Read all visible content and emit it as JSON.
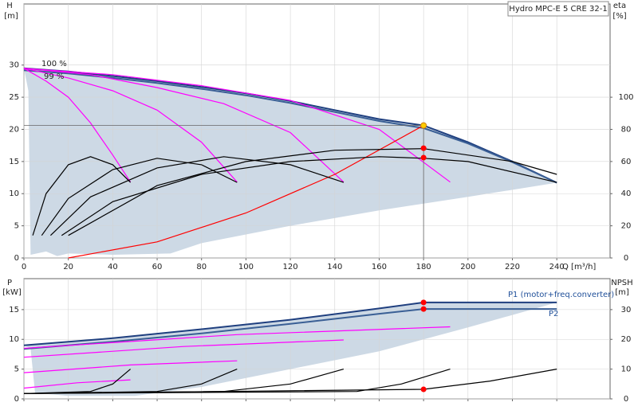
{
  "chart_data": [
    {
      "type": "line",
      "title": "Hydro MPC-E 5 CRE 32-1",
      "x_label": "Q [m³/h]",
      "y_label": "H",
      "y_unit": "[m]",
      "y2_label": "eta",
      "y2_unit": "[%]",
      "xlim": [
        0,
        264
      ],
      "xticks": [
        0,
        20,
        40,
        60,
        80,
        100,
        120,
        140,
        160,
        180,
        200,
        220,
        240
      ],
      "ylim": [
        0,
        39.5
      ],
      "yticks": [
        0,
        5,
        10,
        15,
        20,
        25,
        30
      ],
      "y2lim": [
        0,
        158
      ],
      "y2ticks": [
        0,
        20,
        40,
        60,
        80,
        100
      ],
      "grid": true,
      "area": {
        "color": "#cdd9e5",
        "x": [
          0,
          20,
          40,
          60,
          80,
          100,
          120,
          140,
          160,
          180,
          200,
          220,
          240,
          200,
          160,
          120,
          80,
          66,
          40,
          20,
          15,
          10,
          3,
          2
        ],
        "values": [
          29.5,
          29,
          28.3,
          27.5,
          26.6,
          25.6,
          24.4,
          23,
          21.6,
          20.6,
          18,
          15,
          11.7,
          9.5,
          7.4,
          5,
          2.3,
          0.7,
          0.5,
          0.7,
          0.3,
          1,
          0.5,
          26
        ]
      },
      "series": [
        {
          "name": "100 %",
          "color": "#1f3f7f",
          "x": [
            0,
            20,
            40,
            60,
            80,
            100,
            120,
            140,
            160,
            180,
            200,
            220,
            240
          ],
          "values": [
            29.5,
            29,
            28.3,
            27.5,
            26.6,
            25.6,
            24.4,
            23,
            21.6,
            20.6,
            18,
            15,
            11.7
          ]
        },
        {
          "name": "99 %",
          "color": "#3a5f95",
          "x": [
            0,
            20,
            40,
            60,
            80,
            100,
            120,
            140,
            160,
            180,
            200,
            220,
            240
          ],
          "values": [
            29.2,
            28.7,
            28,
            27.2,
            26.3,
            25.3,
            24.1,
            22.7,
            21.3,
            20.2,
            17.8,
            14.9,
            11.7
          ]
        },
        {
          "color": "#ff00ff",
          "x": [
            0,
            10,
            20,
            30,
            40,
            48
          ],
          "values": [
            29.5,
            27.5,
            25,
            21,
            16,
            11.8
          ]
        },
        {
          "color": "#ff00ff",
          "x": [
            0,
            20,
            40,
            60,
            80,
            96
          ],
          "values": [
            29.5,
            28,
            26,
            23,
            18,
            11.8
          ]
        },
        {
          "color": "#ff00ff",
          "x": [
            0,
            30,
            60,
            90,
            120,
            144
          ],
          "values": [
            29.5,
            28.5,
            26.5,
            24,
            19.5,
            11.8
          ]
        },
        {
          "color": "#ff00ff",
          "x": [
            0,
            40,
            80,
            120,
            160,
            192
          ],
          "values": [
            29.5,
            28.5,
            26.8,
            24.5,
            20,
            11.8
          ]
        },
        {
          "color": "#ff0000",
          "x": [
            20,
            60,
            100,
            140,
            180
          ],
          "values": [
            0,
            2.5,
            7,
            13,
            20.6
          ]
        },
        {
          "color": "#000000",
          "axis": "y2",
          "x": [
            4,
            10,
            20,
            30,
            40,
            48
          ],
          "values": [
            14,
            40,
            58,
            63,
            58,
            47
          ]
        },
        {
          "color": "#000000",
          "axis": "y2",
          "x": [
            8,
            20,
            40,
            60,
            80,
            96
          ],
          "values": [
            14,
            37,
            55,
            62,
            58,
            47
          ]
        },
        {
          "color": "#000000",
          "axis": "y2",
          "x": [
            12,
            30,
            60,
            90,
            120,
            144
          ],
          "values": [
            14,
            38,
            56,
            63,
            58,
            47
          ]
        },
        {
          "color": "#000000",
          "axis": "y2",
          "x": [
            17,
            40,
            80,
            120,
            160,
            180,
            200,
            240
          ],
          "values": [
            14,
            35,
            52,
            60,
            63,
            62,
            60,
            47
          ]
        },
        {
          "color": "#000000",
          "axis": "y2",
          "x": [
            20,
            60,
            100,
            140,
            180,
            220,
            240
          ],
          "values": [
            14,
            45,
            60,
            67,
            68,
            60,
            52
          ]
        }
      ],
      "points": [
        {
          "x": 180,
          "y": 20.6,
          "color": "#ffcc00"
        },
        {
          "x": 180,
          "y": 68.3,
          "axis": "y2",
          "color": "#ff0000"
        },
        {
          "x": 180,
          "y": 62.4,
          "axis": "y2",
          "color": "#ff0000"
        }
      ]
    },
    {
      "type": "line",
      "y_label": "P",
      "y_unit": "[kW]",
      "y2_label": "NPSH",
      "y2_unit": "[m]",
      "xlim": [
        0,
        264
      ],
      "xticks": [
        0,
        20,
        40,
        60,
        80,
        100,
        120,
        140,
        160,
        180,
        200,
        220,
        240
      ],
      "ylim": [
        0,
        20.2
      ],
      "yticks": [
        0,
        5,
        10,
        15
      ],
      "y2lim": [
        0,
        40.4
      ],
      "y2ticks": [
        0,
        10,
        20,
        30
      ],
      "grid": true,
      "area": {
        "color": "#cdd9e5",
        "x": [
          0,
          40,
          80,
          120,
          160,
          180,
          240,
          200,
          160,
          120,
          80,
          50,
          20,
          5,
          3
        ],
        "values": [
          9,
          10.2,
          11.7,
          13.3,
          15.2,
          16.2,
          16.2,
          12,
          8,
          5,
          2,
          0.5,
          0.5,
          1,
          8.5
        ]
      },
      "series": [
        {
          "name": "P1 (motor+freq.converter)",
          "color": "#1f3f7f",
          "x": [
            0,
            40,
            80,
            120,
            160,
            180,
            240
          ],
          "values": [
            9,
            10.2,
            11.7,
            13.3,
            15.2,
            16.2,
            16.2
          ]
        },
        {
          "name": "P2",
          "color": "#3a5f95",
          "x": [
            0,
            40,
            80,
            120,
            160,
            180,
            240
          ],
          "values": [
            8.4,
            9.6,
            11,
            12.6,
            14.3,
            15.1,
            15.1
          ]
        },
        {
          "color": "#ff00ff",
          "x": [
            0,
            24,
            48
          ],
          "values": [
            1.8,
            2.7,
            3.2
          ]
        },
        {
          "color": "#ff00ff",
          "x": [
            0,
            48,
            96
          ],
          "values": [
            4.4,
            5.7,
            6.4
          ]
        },
        {
          "color": "#ff00ff",
          "x": [
            0,
            72,
            144
          ],
          "values": [
            7,
            8.8,
            9.9
          ]
        },
        {
          "color": "#ff00ff",
          "x": [
            0,
            96,
            192
          ],
          "values": [
            8.5,
            10.8,
            12.1
          ]
        },
        {
          "color": "#000000",
          "axis": "y2",
          "x": [
            0,
            30,
            40,
            48
          ],
          "values": [
            1.8,
            2.5,
            5,
            10
          ]
        },
        {
          "color": "#000000",
          "axis": "y2",
          "x": [
            0,
            60,
            80,
            96
          ],
          "values": [
            1.8,
            2.5,
            5,
            10
          ]
        },
        {
          "color": "#000000",
          "axis": "y2",
          "x": [
            0,
            90,
            120,
            144
          ],
          "values": [
            1.8,
            2.5,
            5,
            10
          ]
        },
        {
          "color": "#000000",
          "axis": "y2",
          "x": [
            0,
            150,
            170,
            192
          ],
          "values": [
            1.8,
            2.5,
            5,
            10
          ]
        },
        {
          "color": "#000000",
          "axis": "y2",
          "x": [
            0,
            180,
            210,
            240
          ],
          "values": [
            1.8,
            3.2,
            6,
            10
          ]
        }
      ],
      "points": [
        {
          "x": 180,
          "y": 16.2,
          "color": "#ff0000"
        },
        {
          "x": 180,
          "y": 15.1,
          "color": "#ff0000"
        },
        {
          "x": 180,
          "y": 3.2,
          "axis": "y2",
          "color": "#ff0000"
        }
      ]
    }
  ]
}
